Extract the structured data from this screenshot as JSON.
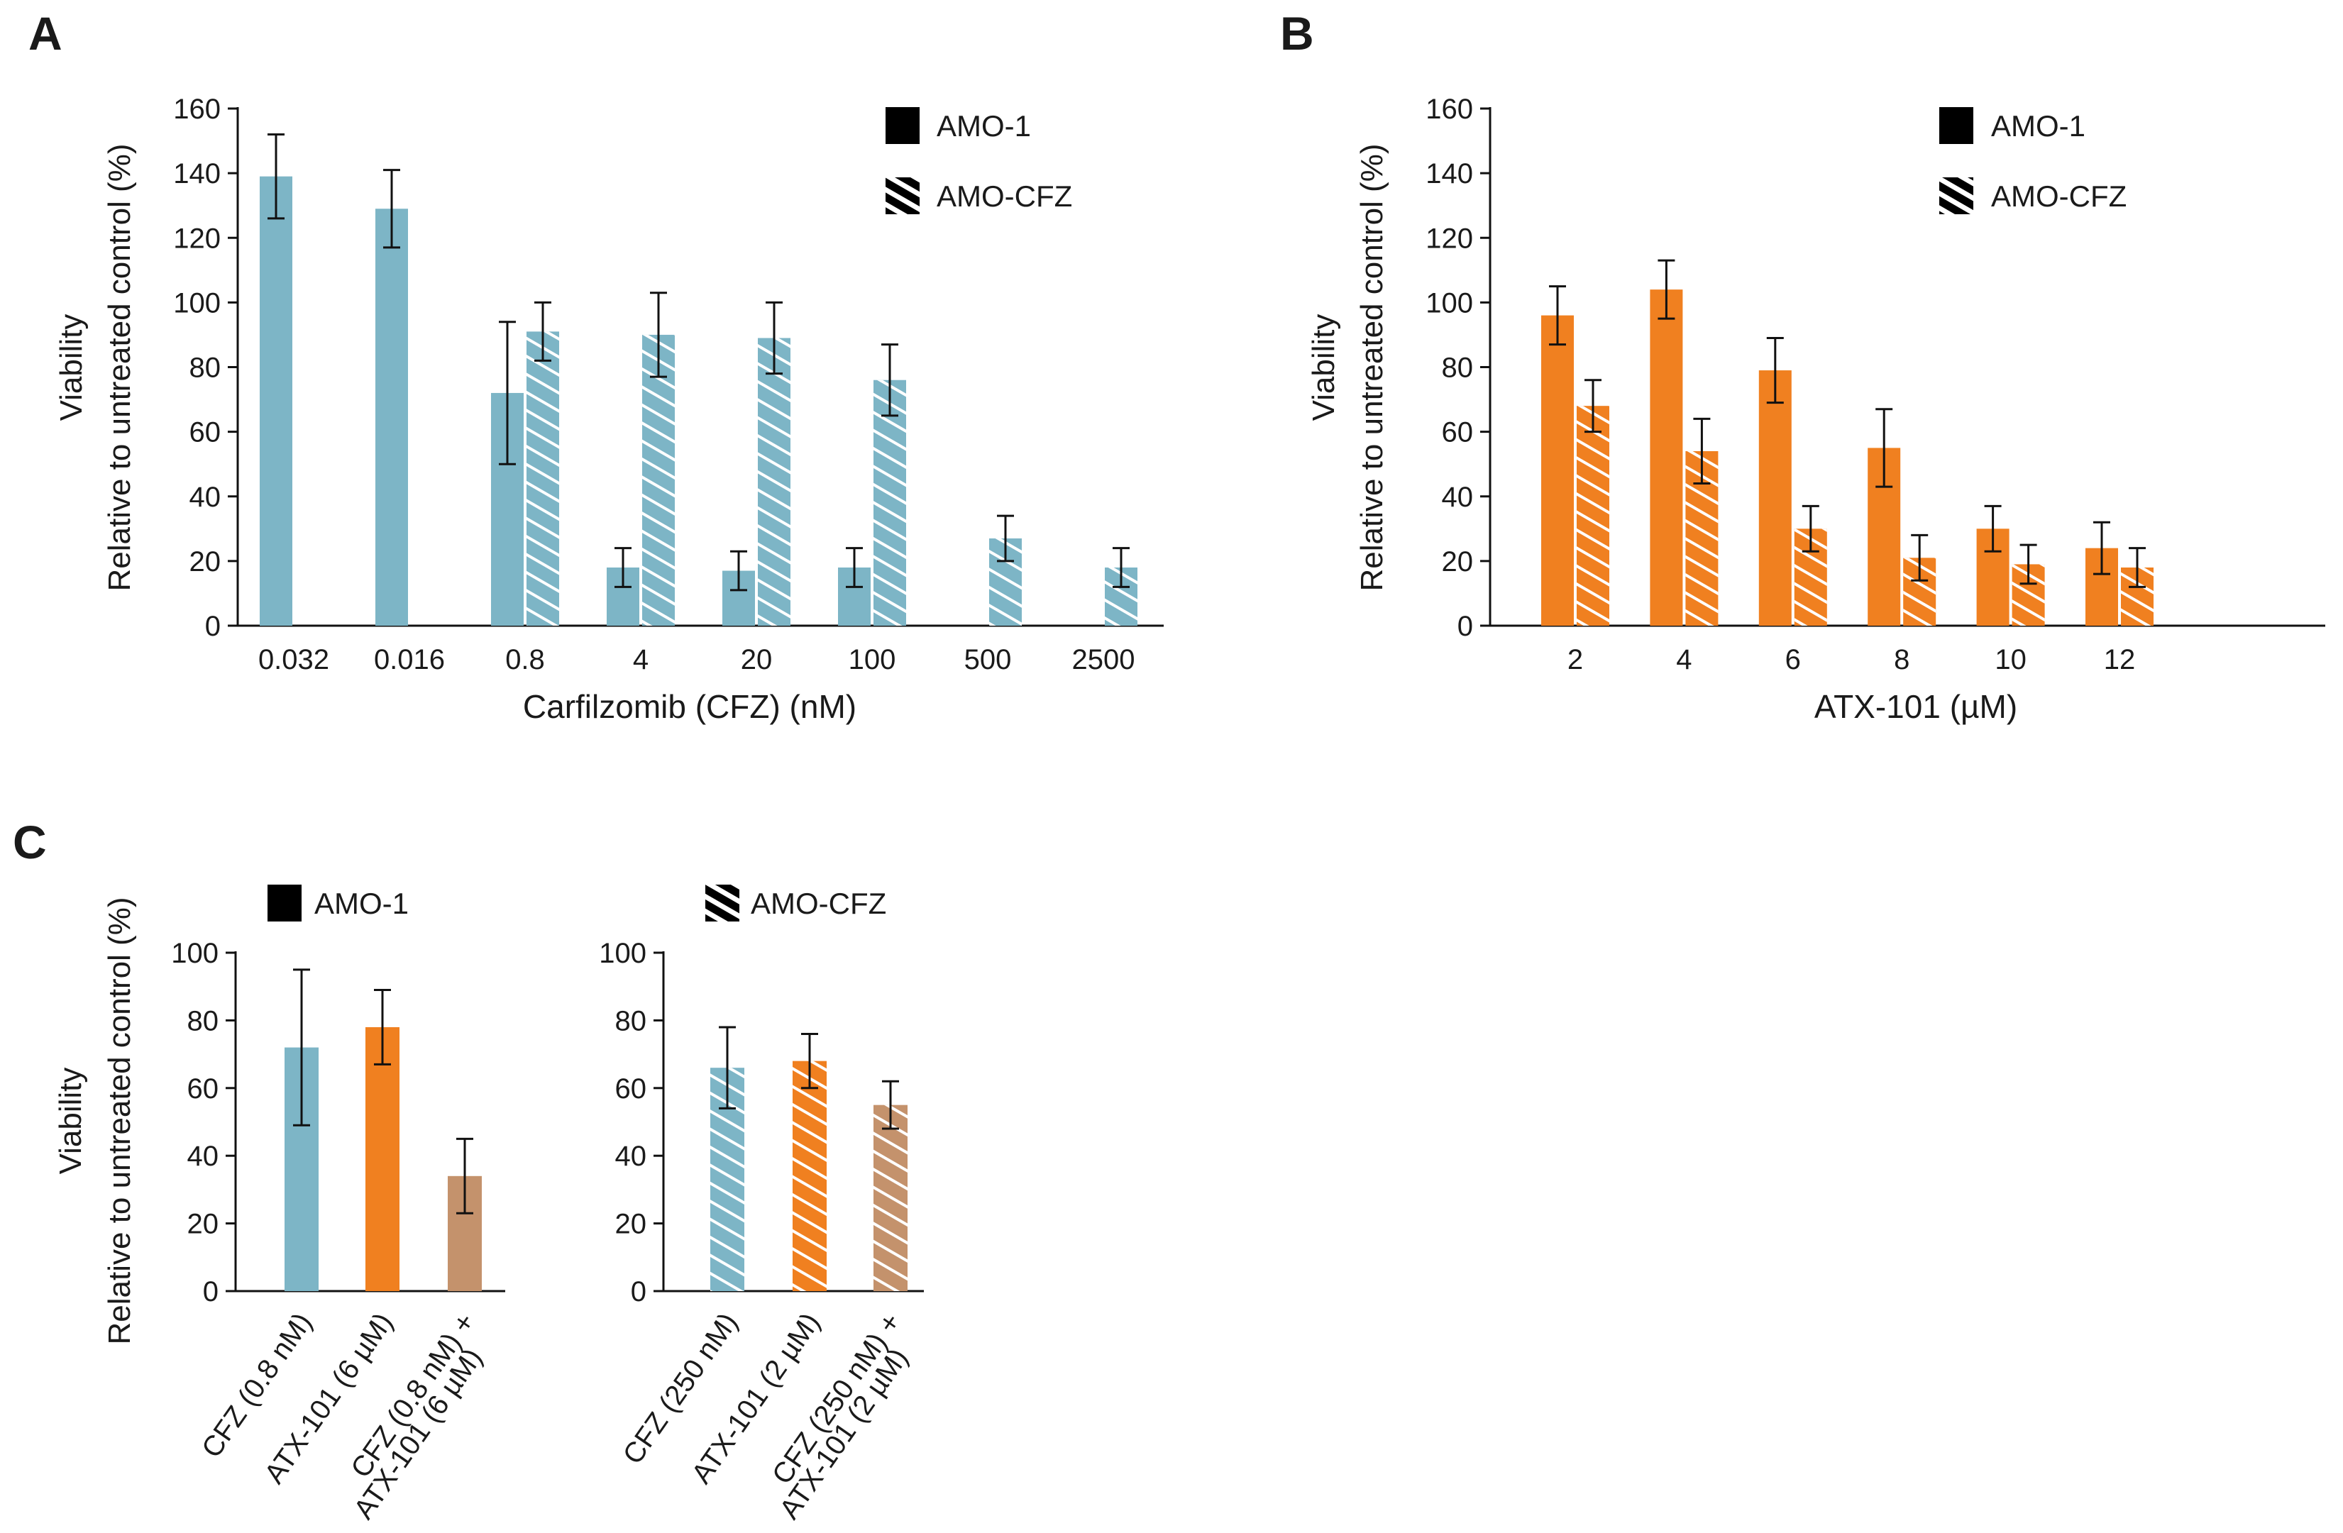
{
  "colors": {
    "blue": "#7DB5C6",
    "orange": "#F08020",
    "tan": "#C4926C",
    "axis": "#111111",
    "legend": "#000000"
  },
  "chart_data": [
    {
      "id": "A",
      "panel_label": "A",
      "type": "bar",
      "xlabel": "Carfilzomib (CFZ) (nM)",
      "ylabel_line1": "Viability",
      "ylabel_line2": "Relative to untreated control (%)",
      "ylim": [
        0,
        160
      ],
      "yticks": [
        "0",
        "20",
        "40",
        "60",
        "80",
        "100",
        "120",
        "140",
        "160"
      ],
      "categories": [
        "0.032",
        "0.016",
        "0.8",
        "4",
        "20",
        "100",
        "500",
        "2500"
      ],
      "legend": [
        "AMO-1",
        "AMO-CFZ"
      ],
      "series": [
        {
          "name": "AMO-1",
          "pattern": "solid",
          "color": "#7DB5C6",
          "values": [
            139,
            129,
            72,
            18,
            17,
            18,
            null,
            null
          ],
          "errors": [
            13,
            12,
            22,
            6,
            6,
            6,
            null,
            null
          ]
        },
        {
          "name": "AMO-CFZ",
          "pattern": "hatched",
          "color": "#7DB5C6",
          "values": [
            null,
            null,
            91,
            90,
            89,
            76,
            27,
            18
          ],
          "errors": [
            null,
            null,
            9,
            13,
            11,
            11,
            7,
            6
          ]
        }
      ]
    },
    {
      "id": "B",
      "panel_label": "B",
      "type": "bar",
      "xlabel": "ATX-101 (µM)",
      "ylabel_line1": "Viability",
      "ylabel_line2": "Relative to untreated control (%)",
      "ylim": [
        0,
        160
      ],
      "yticks": [
        "0",
        "20",
        "40",
        "60",
        "80",
        "100",
        "120",
        "140",
        "160"
      ],
      "categories": [
        "2",
        "4",
        "6",
        "8",
        "10",
        "12"
      ],
      "legend": [
        "AMO-1",
        "AMO-CFZ"
      ],
      "series": [
        {
          "name": "AMO-1",
          "pattern": "solid",
          "color": "#F08020",
          "values": [
            96,
            104,
            79,
            55,
            30,
            24
          ],
          "errors": [
            9,
            9,
            10,
            12,
            7,
            8
          ]
        },
        {
          "name": "AMO-CFZ",
          "pattern": "hatched",
          "color": "#F08020",
          "values": [
            68,
            54,
            30,
            21,
            19,
            18
          ],
          "errors": [
            8,
            10,
            7,
            7,
            6,
            6
          ]
        }
      ]
    },
    {
      "id": "C1",
      "panel_label": "C",
      "type": "bar",
      "ylabel_line1": "Viability",
      "ylabel_line2": "Relative to untreated control (%)",
      "ylim": [
        0,
        100
      ],
      "yticks": [
        "0",
        "20",
        "40",
        "60",
        "80",
        "100"
      ],
      "legend": [
        "AMO-1"
      ],
      "pattern": "solid",
      "categories": [
        [
          "CFZ (0.8 nM)"
        ],
        [
          "ATX-101 (6 µM)"
        ],
        [
          "CFZ (0.8 nM) +",
          "ATX-101 (6 µM)"
        ]
      ],
      "bar_colors": [
        "#7DB5C6",
        "#F08020",
        "#C4926C"
      ],
      "values": [
        72,
        78,
        34
      ],
      "errors": [
        23,
        11,
        11
      ]
    },
    {
      "id": "C2",
      "type": "bar",
      "ylim": [
        0,
        100
      ],
      "yticks": [
        "0",
        "20",
        "40",
        "60",
        "80",
        "100"
      ],
      "legend": [
        "AMO-CFZ"
      ],
      "pattern": "hatched",
      "categories": [
        [
          "CFZ (250 nM)"
        ],
        [
          "ATX-101 (2 µM)"
        ],
        [
          "CFZ (250 nM) +",
          "ATX-101 (2 µM)"
        ]
      ],
      "bar_colors": [
        "#7DB5C6",
        "#F08020",
        "#C4926C"
      ],
      "values": [
        66,
        68,
        55
      ],
      "errors": [
        12,
        8,
        7
      ]
    }
  ]
}
